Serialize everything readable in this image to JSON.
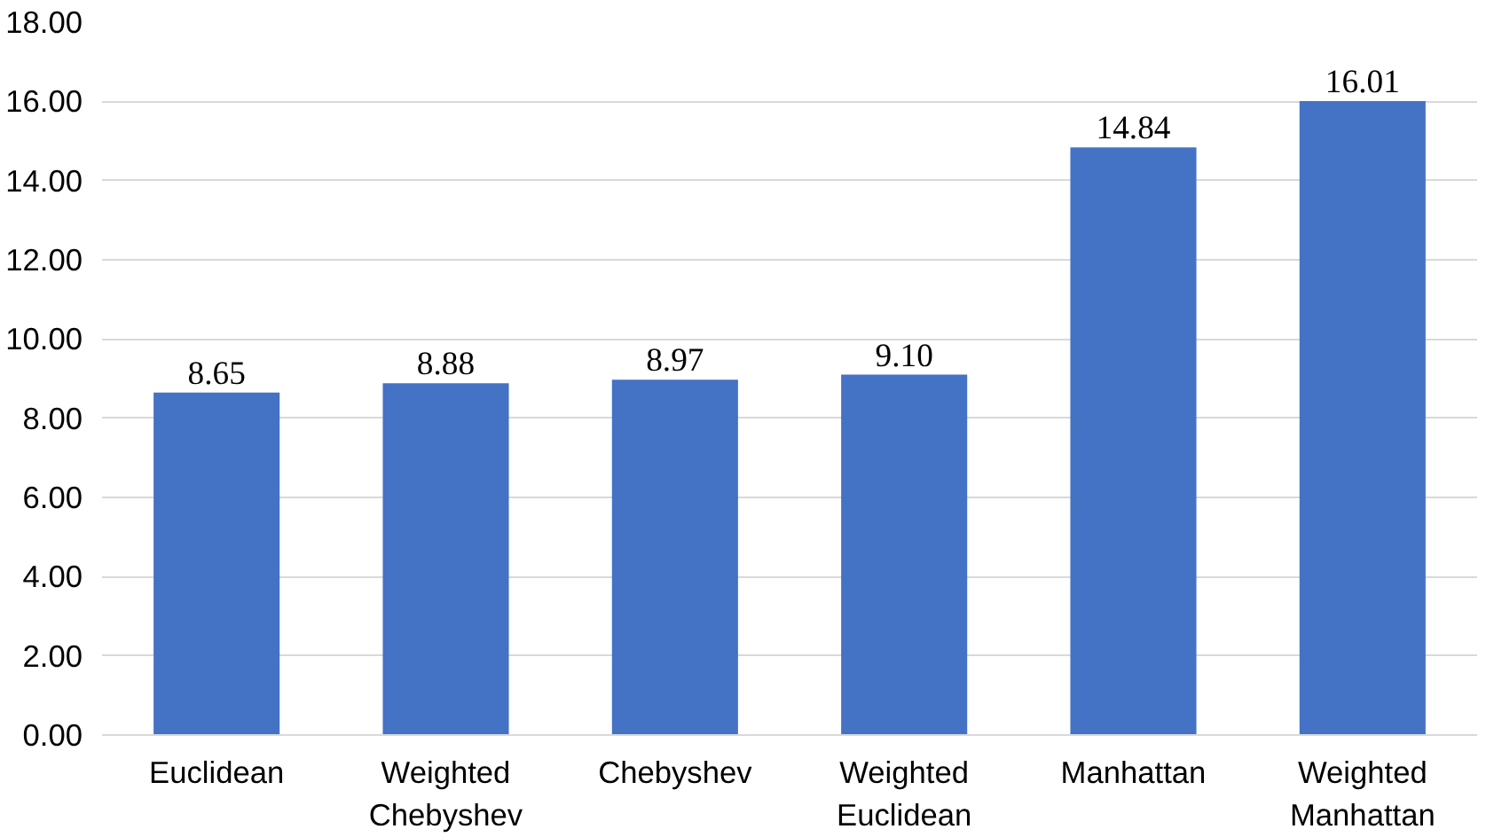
{
  "chart_data": {
    "type": "bar",
    "categories": [
      "Euclidean",
      "Weighted Chebyshev",
      "Chebyshev",
      "Weighted Euclidean",
      "Manhattan",
      "Weighted Manhattan"
    ],
    "values": [
      8.65,
      8.88,
      8.97,
      9.1,
      14.84,
      16.01
    ],
    "value_labels": [
      "8.65",
      "8.88",
      "8.97",
      "9.10",
      "14.84",
      "16.01"
    ],
    "color": "#4472c4",
    "ylim": [
      0,
      18
    ],
    "yticks": [
      {
        "value": 0,
        "label": "0.00"
      },
      {
        "value": 2,
        "label": "2.00"
      },
      {
        "value": 4,
        "label": "4.00"
      },
      {
        "value": 6,
        "label": "6.00"
      },
      {
        "value": 8,
        "label": "8.00"
      },
      {
        "value": 10,
        "label": "10.00"
      },
      {
        "value": 12,
        "label": "12.00"
      },
      {
        "value": 14,
        "label": "14.00"
      },
      {
        "value": 16,
        "label": "16.00"
      },
      {
        "value": 18,
        "label": "18.00"
      }
    ],
    "grid": "y"
  }
}
